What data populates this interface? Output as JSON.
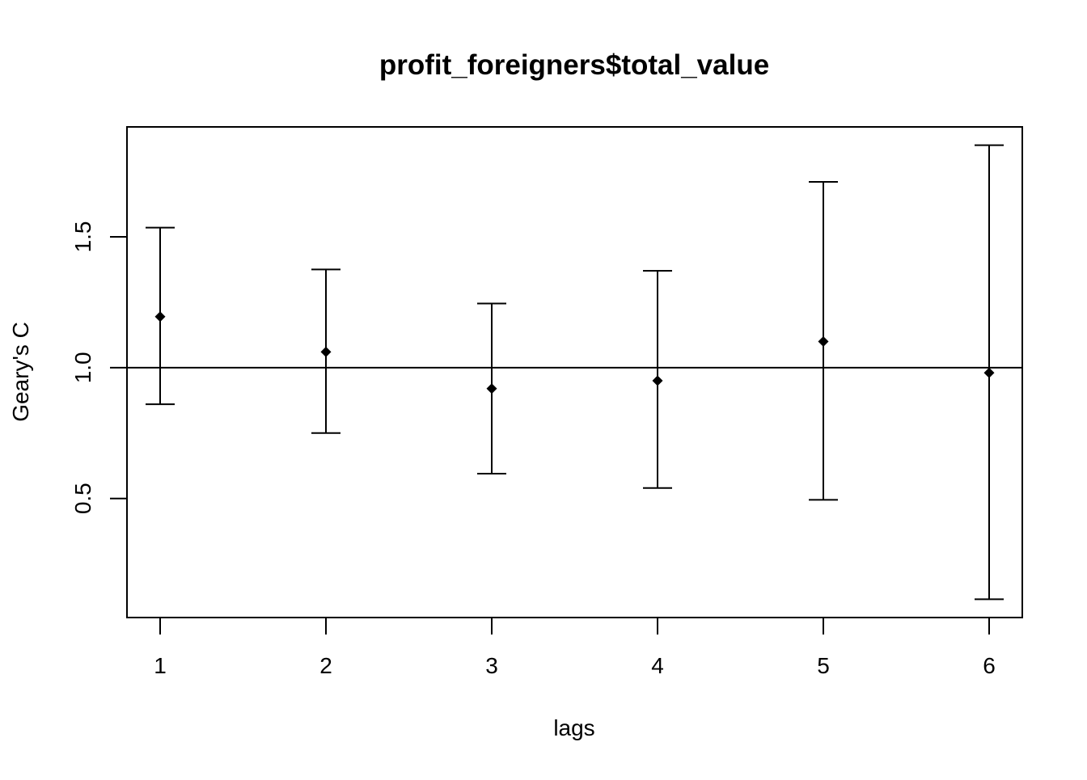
{
  "chart_data": {
    "type": "scatter",
    "title": "profit_foreigners$total_value",
    "xlabel": "lags",
    "ylabel": "Geary's  C",
    "x": [
      1,
      2,
      3,
      4,
      5,
      6
    ],
    "y": [
      1.195,
      1.06,
      0.92,
      0.95,
      1.1,
      0.98
    ],
    "error_lower": [
      0.86,
      0.75,
      0.595,
      0.54,
      0.495,
      0.115
    ],
    "error_upper": [
      1.535,
      1.375,
      1.245,
      1.37,
      1.71,
      1.85
    ],
    "reference_line_y": 1.0,
    "xlim": [
      0.8,
      6.2
    ],
    "ylim": [
      0.045,
      1.92
    ],
    "x_ticks": [
      "1",
      "2",
      "3",
      "4",
      "5",
      "6"
    ],
    "y_ticks": [
      "0.5",
      "1.0",
      "1.5"
    ],
    "grid": false,
    "marker": "filled-diamond",
    "colors": {
      "ink": "#000000",
      "background": "#ffffff"
    }
  }
}
